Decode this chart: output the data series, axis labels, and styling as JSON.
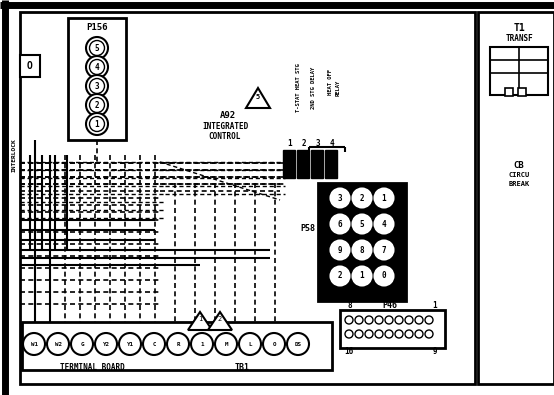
{
  "bg_color": "#ffffff",
  "line_color": "#000000",
  "fig_width": 5.54,
  "fig_height": 3.95,
  "dpi": 100,
  "p156_circles": [
    "5",
    "4",
    "3",
    "2",
    "1"
  ],
  "p58_layout": [
    [
      "3",
      "2",
      "1"
    ],
    [
      "6",
      "5",
      "4"
    ],
    [
      "9",
      "8",
      "7"
    ],
    [
      "2",
      "1",
      "0"
    ]
  ],
  "terminals": [
    "W1",
    "W2",
    "G",
    "Y2",
    "Y1",
    "C",
    "R",
    "1",
    "M",
    "L",
    "O",
    "DS"
  ]
}
